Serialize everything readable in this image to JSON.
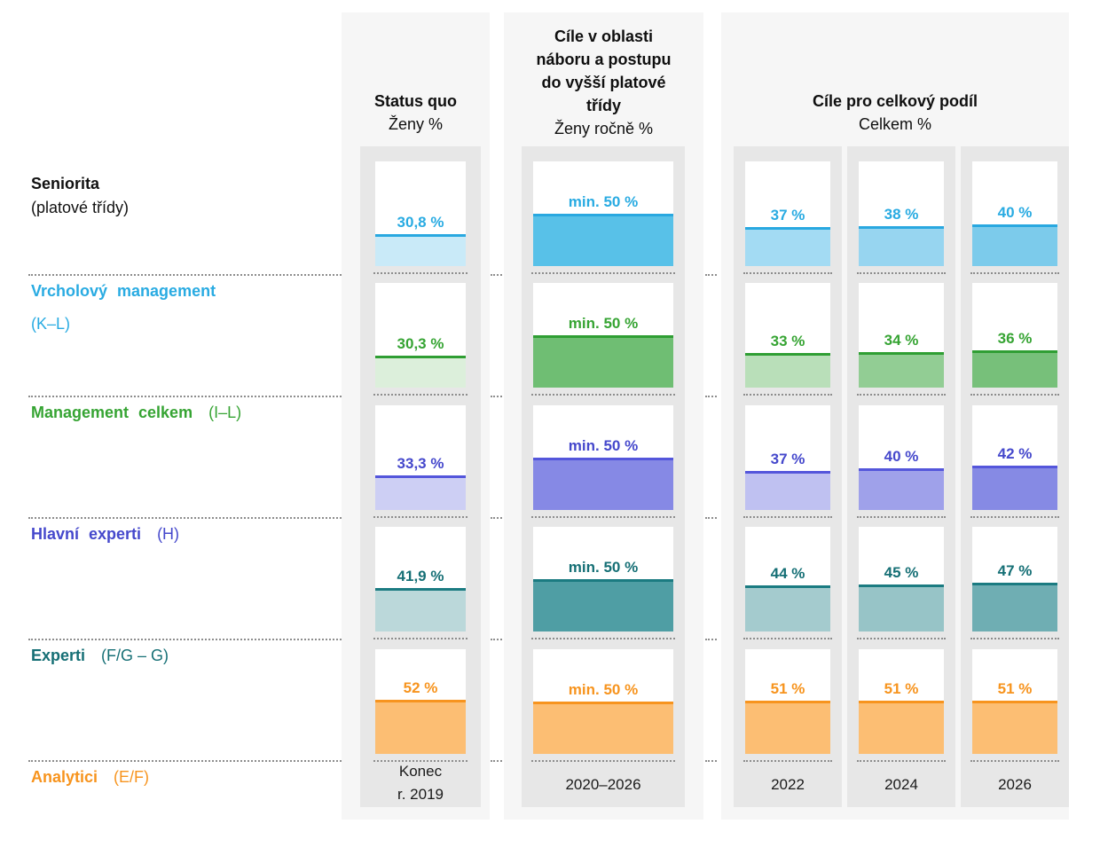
{
  "left_axis": {
    "title": "Seniorita",
    "subtitle": "(platové třídy)"
  },
  "columns": {
    "status": {
      "title": "Status quo",
      "subtitle": "Ženy %",
      "footer_line1": "Konec",
      "footer_line2": "r. 2019"
    },
    "target": {
      "title_lines": [
        "Cíle v oblasti",
        "náboru a postupu",
        "do vyšší platové",
        "třídy"
      ],
      "subtitle": "Ženy ročně %",
      "footer": "2020–2026"
    },
    "total": {
      "title": "Cíle pro celkový podíl",
      "subtitle": "Celkem %",
      "year_footers": [
        "2022",
        "2024",
        "2026"
      ]
    }
  },
  "chart_data": {
    "type": "bar",
    "unit": "%",
    "scale_max": 100,
    "title": "Seniorita (platové třídy)",
    "column_groups": [
      "Status quo – Ženy % (Konec r. 2019)",
      "Cíle v oblasti náboru a postupu do vyšší platové třídy – Ženy ročně % (2020–2026)",
      "Cíle pro celkový podíl – Celkem % (2022, 2024, 2026)"
    ],
    "rows": [
      {
        "label": "Vrcholový management",
        "code": "(K–L)",
        "status": {
          "label": "30,8 %",
          "value": 30.8
        },
        "target": {
          "label": "min. 50 %",
          "value": 50
        },
        "years": [
          {
            "year": "2022",
            "label": "37 %",
            "value": 37
          },
          {
            "year": "2024",
            "label": "38 %",
            "value": 38
          },
          {
            "year": "2026",
            "label": "40 %",
            "value": 40
          }
        ],
        "colors": {
          "text": "#29abe2",
          "line": "#29a8e0",
          "status_fill": "#c9eaf8",
          "target_fill": "#58c1e8",
          "year_fills": [
            "#a3dbf3",
            "#97d5f0",
            "#7ccbeb"
          ]
        }
      },
      {
        "label": "Management celkem",
        "code": "(I–L)",
        "status": {
          "label": "30,3 %",
          "value": 30.3
        },
        "target": {
          "label": "min. 50 %",
          "value": 50
        },
        "years": [
          {
            "year": "2022",
            "label": "33 %",
            "value": 33
          },
          {
            "year": "2024",
            "label": "34 %",
            "value": 34
          },
          {
            "year": "2026",
            "label": "36 %",
            "value": 36
          }
        ],
        "colors": {
          "text": "#36a433",
          "line": "#2f9e33",
          "status_fill": "#dcefdb",
          "target_fill": "#6fbe73",
          "year_fills": [
            "#b9dfb9",
            "#92cd94",
            "#77c07a"
          ]
        }
      },
      {
        "label": "Hlavní experti",
        "code": "(H)",
        "status": {
          "label": "33,3 %",
          "value": 33.3
        },
        "target": {
          "label": "min. 50 %",
          "value": 50
        },
        "years": [
          {
            "year": "2022",
            "label": "37 %",
            "value": 37
          },
          {
            "year": "2024",
            "label": "40 %",
            "value": 40
          },
          {
            "year": "2026",
            "label": "42 %",
            "value": 42
          }
        ],
        "colors": {
          "text": "#4548cc",
          "line": "#5456db",
          "status_fill": "#cdcff4",
          "target_fill": "#8689e5",
          "year_fills": [
            "#bfc1f1",
            "#9fa1ea",
            "#868ae4"
          ]
        }
      },
      {
        "label": "Experti",
        "code": "(F/G – G)",
        "status": {
          "label": "41,9 %",
          "value": 41.9
        },
        "target": {
          "label": "min. 50 %",
          "value": 50
        },
        "years": [
          {
            "year": "2022",
            "label": "44 %",
            "value": 44
          },
          {
            "year": "2024",
            "label": "45 %",
            "value": 45
          },
          {
            "year": "2026",
            "label": "47 %",
            "value": 47
          }
        ],
        "colors": {
          "text": "#156f75",
          "line": "#1b7b81",
          "status_fill": "#bbd8da",
          "target_fill": "#4f9ea4",
          "year_fills": [
            "#a4cbce",
            "#97c4c7",
            "#6faeb3"
          ]
        }
      },
      {
        "label": "Analytici",
        "code": "(E/F)",
        "status": {
          "label": "52 %",
          "value": 52
        },
        "target": {
          "label": "min. 50 %",
          "value": 50
        },
        "years": [
          {
            "year": "2022",
            "label": "51 %",
            "value": 51
          },
          {
            "year": "2024",
            "label": "51 %",
            "value": 51
          },
          {
            "year": "2026",
            "label": "51 %",
            "value": 51
          }
        ],
        "colors": {
          "text": "#f7941e",
          "line": "#f7941e",
          "status_fill": "#fcbe73",
          "target_fill": "#fcbe73",
          "year_fills": [
            "#fcbe73",
            "#fcbe73",
            "#fcbe73"
          ]
        }
      }
    ]
  }
}
